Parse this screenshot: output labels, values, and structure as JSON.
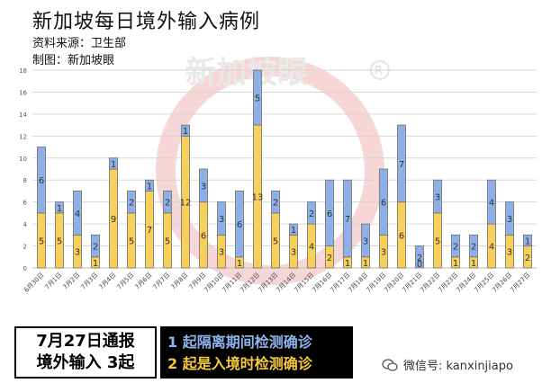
{
  "header": {
    "title": "新加坡每日境外输入病例",
    "source": "资料来源：卫生部",
    "maker": "制图：新加坡眼"
  },
  "watermark": {
    "text": "新加坡眼"
  },
  "footer": {
    "report_line1": "7月27日通报",
    "report_line2": "境外输入 3起",
    "legend_line1": "1 起隔离期间检测确诊",
    "legend_line2": "2 起是入境时检测确诊"
  },
  "wechat": {
    "icon": "wechat-icon",
    "text": "微信号: kanxinjiapo"
  },
  "colors": {
    "bottom": "#f7cf5c",
    "top": "#8fb0e6",
    "stroke": "#6d6d6d"
  },
  "chart_data": {
    "type": "bar",
    "stacked": true,
    "categories": [
      "6月30日",
      "7月1日",
      "7月2日",
      "7月3日",
      "7月4日",
      "7月5日",
      "7月6日",
      "7月7日",
      "7月8日",
      "7月9日",
      "7月10日",
      "7月11日",
      "7月12日",
      "7月13日",
      "7月14日",
      "7月15日",
      "7月16日",
      "7月17日",
      "7月18日",
      "7月19日",
      "7月20日",
      "7月21日",
      "7月22日",
      "7月23日",
      "7月24日",
      "7月25日",
      "7月26日",
      "7月27日"
    ],
    "series": [
      {
        "values": [
          5,
          5,
          3,
          1,
          9,
          5,
          7,
          5,
          12,
          6,
          3,
          1,
          13,
          5,
          3,
          4,
          2,
          1,
          1,
          3,
          6,
          0,
          5,
          1,
          1,
          4,
          3,
          2
        ]
      },
      {
        "values": [
          6,
          1,
          4,
          2,
          1,
          2,
          1,
          2,
          1,
          3,
          3,
          6,
          5,
          2,
          1,
          2,
          6,
          7,
          3,
          6,
          7,
          2,
          3,
          2,
          2,
          4,
          3,
          1
        ]
      }
    ],
    "ylim": [
      0,
      18
    ],
    "yticks": [
      0,
      2,
      4,
      6,
      8,
      10,
      12,
      14,
      16,
      18
    ],
    "grid": true
  }
}
